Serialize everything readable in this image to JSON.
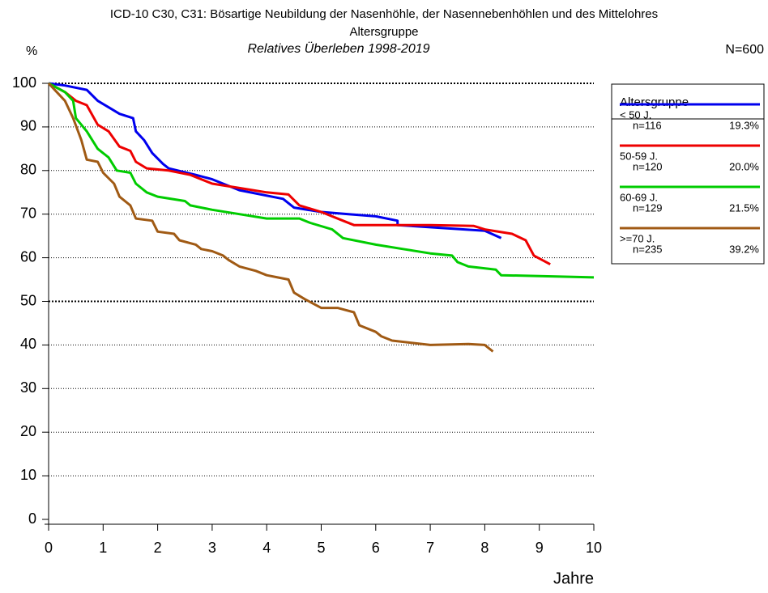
{
  "chart_data": {
    "type": "line",
    "title": "ICD-10 C30, C31: Bösartige Neubildung der Nasenhöhle, der Nasennebenhöhlen und des Mittelohres",
    "subtitle": "Altersgruppe",
    "subtitle2": "Relatives Überleben 1998-2019",
    "y_label": "%",
    "x_label": "Jahre",
    "annotation": "N=600",
    "legend_title": "Altersgruppe",
    "legend_position": "right",
    "grid": true,
    "xlim": [
      0,
      10
    ],
    "ylim": [
      0,
      100
    ],
    "xticks": [
      0,
      1,
      2,
      3,
      4,
      5,
      6,
      7,
      8,
      9,
      10
    ],
    "yticks": [
      0,
      10,
      20,
      30,
      40,
      50,
      60,
      70,
      80,
      90,
      100
    ],
    "series": [
      {
        "name": "< 50 J.",
        "n_label": "n=116",
        "share_label": "19.3%",
        "color": "#0000ee",
        "x": [
          0,
          0.3,
          0.7,
          0.9,
          1.1,
          1.3,
          1.55,
          1.6,
          1.75,
          1.9,
          2.1,
          2.2,
          2.7,
          3,
          3.5,
          4.3,
          4.5,
          5,
          5.5,
          6,
          6.4,
          6.4,
          7,
          8,
          8.3
        ],
        "values": [
          100,
          99.5,
          98.5,
          96,
          94.5,
          93,
          92,
          89,
          87,
          84,
          81.5,
          80.5,
          79,
          78,
          75.5,
          73.5,
          71.5,
          70.5,
          70,
          69.5,
          68.5,
          67.5,
          67,
          66.2,
          64.5
        ]
      },
      {
        "name": "50-59 J.",
        "n_label": "n=120",
        "share_label": "20.0%",
        "color": "#ee0000",
        "x": [
          0,
          0.3,
          0.5,
          0.7,
          0.9,
          1.1,
          1.3,
          1.5,
          1.6,
          1.8,
          2.2,
          2.6,
          3,
          3.5,
          4,
          4.4,
          4.6,
          5,
          5.4,
          5.6,
          6,
          7,
          7.8,
          8,
          8.5,
          8.75,
          8.9,
          9.2
        ],
        "values": [
          100,
          98,
          96,
          95,
          90.5,
          89,
          85.5,
          84.5,
          82,
          80.5,
          80,
          79,
          77,
          76,
          75,
          74.5,
          72,
          70.5,
          68.5,
          67.5,
          67.5,
          67.5,
          67.3,
          66.5,
          65.5,
          64,
          60.5,
          58.5
        ]
      },
      {
        "name": "60-69 J.",
        "n_label": "n=129",
        "share_label": "21.5%",
        "color": "#00cc00",
        "x": [
          0,
          0.3,
          0.45,
          0.5,
          0.7,
          0.9,
          1.1,
          1.25,
          1.5,
          1.6,
          1.8,
          2,
          2.5,
          2.6,
          3,
          3.5,
          4,
          4.6,
          4.8,
          5.2,
          5.4,
          6,
          6.5,
          7,
          7.4,
          7.5,
          7.7,
          8.2,
          8.3,
          9,
          10
        ],
        "values": [
          100,
          98,
          96,
          92,
          89,
          85,
          83,
          80,
          79.5,
          77,
          75,
          74,
          73,
          72,
          71,
          70,
          69,
          69,
          68,
          66.5,
          64.5,
          63,
          62,
          61,
          60.5,
          59,
          58,
          57.3,
          56,
          55.8,
          55.5
        ]
      },
      {
        "name": ">=70 J.",
        "n_label": "n=235",
        "share_label": "39.2%",
        "color": "#a05a14",
        "x": [
          0,
          0.15,
          0.3,
          0.45,
          0.6,
          0.7,
          0.9,
          1,
          1.2,
          1.3,
          1.5,
          1.6,
          1.9,
          2,
          2.3,
          2.4,
          2.7,
          2.8,
          3,
          3.2,
          3.3,
          3.5,
          3.8,
          4,
          4.2,
          4.4,
          4.5,
          4.7,
          5,
          5.3,
          5.6,
          5.7,
          6,
          6.1,
          6.3,
          7,
          7.7,
          8,
          8.15
        ],
        "values": [
          100,
          98,
          96,
          92,
          87,
          82.5,
          82,
          79.5,
          77,
          74,
          72,
          69,
          68.5,
          66,
          65.5,
          64,
          63,
          62,
          61.5,
          60.5,
          59.5,
          58,
          57,
          56,
          55.5,
          55,
          52,
          50.5,
          48.5,
          48.5,
          47.5,
          44.5,
          43,
          42,
          41,
          40,
          40.2,
          40,
          38.5
        ]
      }
    ]
  }
}
